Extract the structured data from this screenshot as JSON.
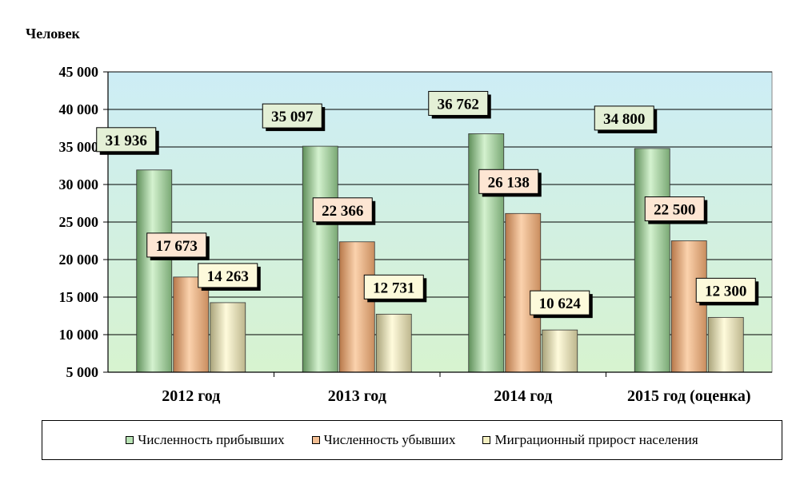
{
  "chart_data": {
    "type": "bar",
    "ylabel": "Человек",
    "ylim": [
      5000,
      45000
    ],
    "yticks": [
      "5 000",
      "10 000",
      "15 000",
      "20 000",
      "25 000",
      "30 000",
      "35 000",
      "40 000",
      "45 000"
    ],
    "ytick_values": [
      5000,
      10000,
      15000,
      20000,
      25000,
      30000,
      35000,
      40000,
      45000
    ],
    "categories": [
      "2012 год",
      "2013 год",
      "2014 год",
      "2015 год (оценка)"
    ],
    "series": [
      {
        "name": "Численность прибывших",
        "color": "#b9e3b5",
        "values": [
          31936,
          35097,
          36762,
          34800
        ],
        "labels": [
          "31 936",
          "35 097",
          "36 762",
          "34 800"
        ],
        "label_fill": "#e4f0d6"
      },
      {
        "name": "Численность убывших",
        "color": "#f2be93",
        "values": [
          17673,
          22366,
          26138,
          22500
        ],
        "labels": [
          "17 673",
          "22 366",
          "26 138",
          "22 500"
        ],
        "label_fill": "#fde6d3"
      },
      {
        "name": "Миграционный прирост населения",
        "color": "#f4f0c2",
        "values": [
          14263,
          12731,
          10624,
          12300
        ],
        "labels": [
          "14 263",
          "12 731",
          "10 624",
          "12 300"
        ],
        "label_fill": "#fdfadb"
      }
    ],
    "grid": true,
    "legend_position": "bottom",
    "plot_background": "#cfeef4"
  }
}
